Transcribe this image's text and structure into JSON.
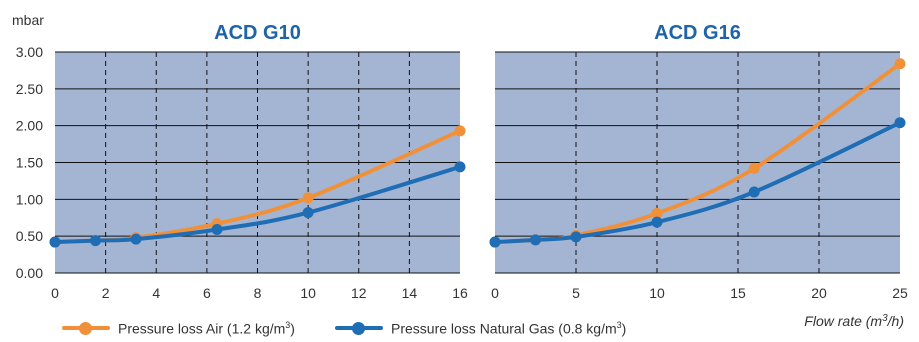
{
  "y_unit_label": "mbar",
  "x_axis_label_main": "Flow rate (m",
  "x_axis_label_sup": "3",
  "x_axis_label_end": "/h)",
  "colors": {
    "plot_bg": "#a3b5d3",
    "grid": "#111111",
    "air": "#f0913a",
    "gas": "#1f6db5",
    "title": "#1f63a8",
    "text": "#333333"
  },
  "legend": [
    {
      "label": "Pressure loss Air (1.2 kg/m",
      "sup": "3",
      "end": ")",
      "color_key": "air"
    },
    {
      "label": "Pressure loss Natural Gas (0.8 kg/m",
      "sup": "3",
      "end": ")",
      "color_key": "gas"
    }
  ],
  "chart_data": [
    {
      "type": "line",
      "title": "ACD G10",
      "xlim": [
        0,
        16
      ],
      "ylim": [
        0,
        3
      ],
      "x_ticks": [
        0,
        2,
        4,
        6,
        8,
        10,
        12,
        14,
        16
      ],
      "y_ticks": [
        "0.00",
        "0.50",
        "1.00",
        "1.50",
        "2.00",
        "2.50",
        "3.00"
      ],
      "grid": "dashed vertical, solid horizontal",
      "series": [
        {
          "name": "Pressure loss Air (1.2 kg/m3)",
          "color_key": "air",
          "x": [
            0,
            1.6,
            3.2,
            6.4,
            10,
            16
          ],
          "y": [
            0.42,
            0.44,
            0.48,
            0.67,
            1.02,
            1.93
          ]
        },
        {
          "name": "Pressure loss Natural Gas (0.8 kg/m3)",
          "color_key": "gas",
          "x": [
            0,
            1.6,
            3.2,
            6.4,
            10,
            16
          ],
          "y": [
            0.42,
            0.44,
            0.46,
            0.59,
            0.82,
            1.44
          ]
        }
      ]
    },
    {
      "type": "line",
      "title": "ACD G16",
      "xlim": [
        0,
        25
      ],
      "ylim": [
        0,
        3
      ],
      "x_ticks": [
        0,
        5,
        10,
        15,
        20,
        25
      ],
      "y_ticks": [
        "0.00",
        "0.50",
        "1.00",
        "1.50",
        "2.00",
        "2.50",
        "3.00"
      ],
      "grid": "dashed vertical, solid horizontal",
      "series": [
        {
          "name": "Pressure loss Air (1.2 kg/m3)",
          "color_key": "air",
          "x": [
            0,
            2.5,
            5,
            10,
            16,
            25
          ],
          "y": [
            0.42,
            0.45,
            0.51,
            0.81,
            1.42,
            2.84
          ]
        },
        {
          "name": "Pressure loss Natural Gas (0.8 kg/m3)",
          "color_key": "gas",
          "x": [
            0,
            2.5,
            5,
            10,
            16,
            25
          ],
          "y": [
            0.42,
            0.45,
            0.49,
            0.69,
            1.1,
            2.04
          ]
        }
      ]
    }
  ]
}
